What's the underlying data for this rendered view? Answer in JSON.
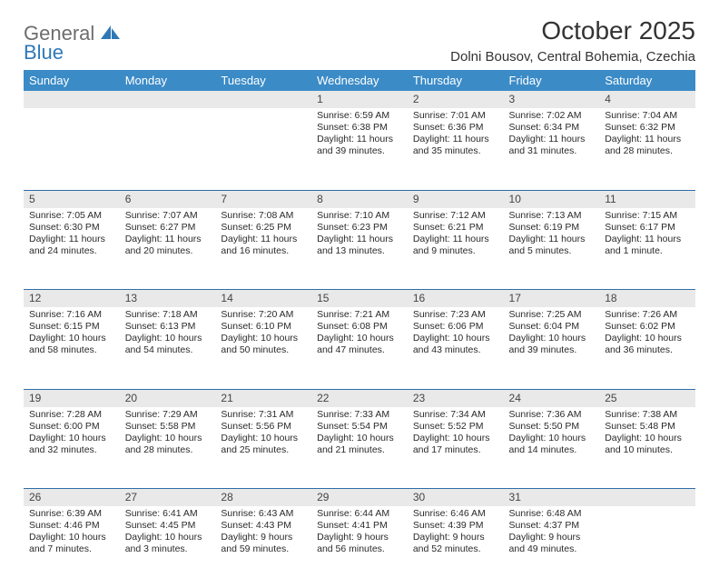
{
  "logo": {
    "word1": "General",
    "word2": "Blue"
  },
  "title": "October 2025",
  "location": "Dolni Bousov, Central Bohemia, Czechia",
  "colors": {
    "header_bg": "#3b8bc7",
    "header_text": "#ffffff",
    "daynum_bg": "#e9e9e9",
    "row_border": "#2f6ea8",
    "text": "#2a2a2a",
    "logo_gray": "#6d6d6d",
    "logo_blue": "#2f78b7",
    "background": "#ffffff"
  },
  "typography": {
    "title_fontsize": 28,
    "location_fontsize": 15,
    "head_fontsize": 13,
    "daynum_fontsize": 12,
    "body_fontsize": 10.5
  },
  "weekdays": [
    "Sunday",
    "Monday",
    "Tuesday",
    "Wednesday",
    "Thursday",
    "Friday",
    "Saturday"
  ],
  "weeks": [
    [
      null,
      null,
      null,
      {
        "n": "1",
        "sunrise": "Sunrise: 6:59 AM",
        "sunset": "Sunset: 6:38 PM",
        "daylight": "Daylight: 11 hours and 39 minutes."
      },
      {
        "n": "2",
        "sunrise": "Sunrise: 7:01 AM",
        "sunset": "Sunset: 6:36 PM",
        "daylight": "Daylight: 11 hours and 35 minutes."
      },
      {
        "n": "3",
        "sunrise": "Sunrise: 7:02 AM",
        "sunset": "Sunset: 6:34 PM",
        "daylight": "Daylight: 11 hours and 31 minutes."
      },
      {
        "n": "4",
        "sunrise": "Sunrise: 7:04 AM",
        "sunset": "Sunset: 6:32 PM",
        "daylight": "Daylight: 11 hours and 28 minutes."
      }
    ],
    [
      {
        "n": "5",
        "sunrise": "Sunrise: 7:05 AM",
        "sunset": "Sunset: 6:30 PM",
        "daylight": "Daylight: 11 hours and 24 minutes."
      },
      {
        "n": "6",
        "sunrise": "Sunrise: 7:07 AM",
        "sunset": "Sunset: 6:27 PM",
        "daylight": "Daylight: 11 hours and 20 minutes."
      },
      {
        "n": "7",
        "sunrise": "Sunrise: 7:08 AM",
        "sunset": "Sunset: 6:25 PM",
        "daylight": "Daylight: 11 hours and 16 minutes."
      },
      {
        "n": "8",
        "sunrise": "Sunrise: 7:10 AM",
        "sunset": "Sunset: 6:23 PM",
        "daylight": "Daylight: 11 hours and 13 minutes."
      },
      {
        "n": "9",
        "sunrise": "Sunrise: 7:12 AM",
        "sunset": "Sunset: 6:21 PM",
        "daylight": "Daylight: 11 hours and 9 minutes."
      },
      {
        "n": "10",
        "sunrise": "Sunrise: 7:13 AM",
        "sunset": "Sunset: 6:19 PM",
        "daylight": "Daylight: 11 hours and 5 minutes."
      },
      {
        "n": "11",
        "sunrise": "Sunrise: 7:15 AM",
        "sunset": "Sunset: 6:17 PM",
        "daylight": "Daylight: 11 hours and 1 minute."
      }
    ],
    [
      {
        "n": "12",
        "sunrise": "Sunrise: 7:16 AM",
        "sunset": "Sunset: 6:15 PM",
        "daylight": "Daylight: 10 hours and 58 minutes."
      },
      {
        "n": "13",
        "sunrise": "Sunrise: 7:18 AM",
        "sunset": "Sunset: 6:13 PM",
        "daylight": "Daylight: 10 hours and 54 minutes."
      },
      {
        "n": "14",
        "sunrise": "Sunrise: 7:20 AM",
        "sunset": "Sunset: 6:10 PM",
        "daylight": "Daylight: 10 hours and 50 minutes."
      },
      {
        "n": "15",
        "sunrise": "Sunrise: 7:21 AM",
        "sunset": "Sunset: 6:08 PM",
        "daylight": "Daylight: 10 hours and 47 minutes."
      },
      {
        "n": "16",
        "sunrise": "Sunrise: 7:23 AM",
        "sunset": "Sunset: 6:06 PM",
        "daylight": "Daylight: 10 hours and 43 minutes."
      },
      {
        "n": "17",
        "sunrise": "Sunrise: 7:25 AM",
        "sunset": "Sunset: 6:04 PM",
        "daylight": "Daylight: 10 hours and 39 minutes."
      },
      {
        "n": "18",
        "sunrise": "Sunrise: 7:26 AM",
        "sunset": "Sunset: 6:02 PM",
        "daylight": "Daylight: 10 hours and 36 minutes."
      }
    ],
    [
      {
        "n": "19",
        "sunrise": "Sunrise: 7:28 AM",
        "sunset": "Sunset: 6:00 PM",
        "daylight": "Daylight: 10 hours and 32 minutes."
      },
      {
        "n": "20",
        "sunrise": "Sunrise: 7:29 AM",
        "sunset": "Sunset: 5:58 PM",
        "daylight": "Daylight: 10 hours and 28 minutes."
      },
      {
        "n": "21",
        "sunrise": "Sunrise: 7:31 AM",
        "sunset": "Sunset: 5:56 PM",
        "daylight": "Daylight: 10 hours and 25 minutes."
      },
      {
        "n": "22",
        "sunrise": "Sunrise: 7:33 AM",
        "sunset": "Sunset: 5:54 PM",
        "daylight": "Daylight: 10 hours and 21 minutes."
      },
      {
        "n": "23",
        "sunrise": "Sunrise: 7:34 AM",
        "sunset": "Sunset: 5:52 PM",
        "daylight": "Daylight: 10 hours and 17 minutes."
      },
      {
        "n": "24",
        "sunrise": "Sunrise: 7:36 AM",
        "sunset": "Sunset: 5:50 PM",
        "daylight": "Daylight: 10 hours and 14 minutes."
      },
      {
        "n": "25",
        "sunrise": "Sunrise: 7:38 AM",
        "sunset": "Sunset: 5:48 PM",
        "daylight": "Daylight: 10 hours and 10 minutes."
      }
    ],
    [
      {
        "n": "26",
        "sunrise": "Sunrise: 6:39 AM",
        "sunset": "Sunset: 4:46 PM",
        "daylight": "Daylight: 10 hours and 7 minutes."
      },
      {
        "n": "27",
        "sunrise": "Sunrise: 6:41 AM",
        "sunset": "Sunset: 4:45 PM",
        "daylight": "Daylight: 10 hours and 3 minutes."
      },
      {
        "n": "28",
        "sunrise": "Sunrise: 6:43 AM",
        "sunset": "Sunset: 4:43 PM",
        "daylight": "Daylight: 9 hours and 59 minutes."
      },
      {
        "n": "29",
        "sunrise": "Sunrise: 6:44 AM",
        "sunset": "Sunset: 4:41 PM",
        "daylight": "Daylight: 9 hours and 56 minutes."
      },
      {
        "n": "30",
        "sunrise": "Sunrise: 6:46 AM",
        "sunset": "Sunset: 4:39 PM",
        "daylight": "Daylight: 9 hours and 52 minutes."
      },
      {
        "n": "31",
        "sunrise": "Sunrise: 6:48 AM",
        "sunset": "Sunset: 4:37 PM",
        "daylight": "Daylight: 9 hours and 49 minutes."
      },
      null
    ]
  ]
}
